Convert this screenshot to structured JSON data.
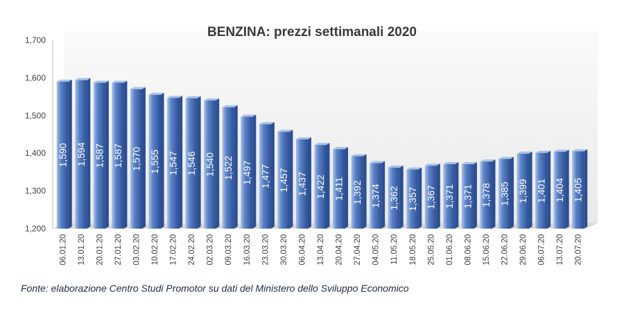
{
  "source_note": "Fonte: elaborazione Centro Studi Promotor su dati del Ministero dello Sviluppo Economico",
  "colors": {
    "bar_light": "#a9c1e8",
    "bar_mid": "#5a82c8",
    "bar_dark": "#2c4f93",
    "background_panel": "#f2f2f2",
    "value_label": "#ffffff",
    "title": "#3a3a3a"
  },
  "chart_data": {
    "type": "bar",
    "title": "BENZINA: prezzi settimanali 2020",
    "xlabel": "",
    "ylabel": "",
    "ylim": [
      1.2,
      1.7
    ],
    "yticks": [
      "1,200",
      "1,300",
      "1,400",
      "1,500",
      "1,600",
      "1,700"
    ],
    "ytick_values": [
      1.2,
      1.3,
      1.4,
      1.5,
      1.6,
      1.7
    ],
    "grid": false,
    "legend": "none",
    "categories": [
      "06.01.20",
      "13.01.20",
      "20.01.20",
      "27.01.20",
      "03.02.20",
      "10.02.20",
      "17.02.20",
      "24.02.20",
      "02.03.20",
      "09.03.20",
      "16.03.20",
      "23.03.20",
      "30.03.20",
      "06.04.20",
      "13.04.20",
      "20.04.20",
      "27.04.20",
      "04.05.20",
      "11.05.20",
      "18.05.20",
      "25.05.20",
      "01.06.20",
      "08.06.20",
      "15.06.20",
      "22.06.20",
      "29.06.20",
      "06.07.20",
      "13.07.20",
      "20.07.20"
    ],
    "values": [
      1.59,
      1.594,
      1.587,
      1.587,
      1.57,
      1.555,
      1.547,
      1.546,
      1.54,
      1.522,
      1.497,
      1.477,
      1.457,
      1.437,
      1.422,
      1.411,
      1.392,
      1.374,
      1.362,
      1.357,
      1.367,
      1.371,
      1.371,
      1.378,
      1.385,
      1.399,
      1.401,
      1.404,
      1.405
    ],
    "value_labels": [
      "1,590",
      "1,594",
      "1,587",
      "1,587",
      "1,570",
      "1,555",
      "1,547",
      "1,546",
      "1,540",
      "1,522",
      "1,497",
      "1,477",
      "1,457",
      "1,437",
      "1,422",
      "1,411",
      "1,392",
      "1,374",
      "1,362",
      "1,357",
      "1,367",
      "1,371",
      "1,371",
      "1,378",
      "1,385",
      "1,399",
      "1,401",
      "1,404",
      "1,405"
    ]
  }
}
